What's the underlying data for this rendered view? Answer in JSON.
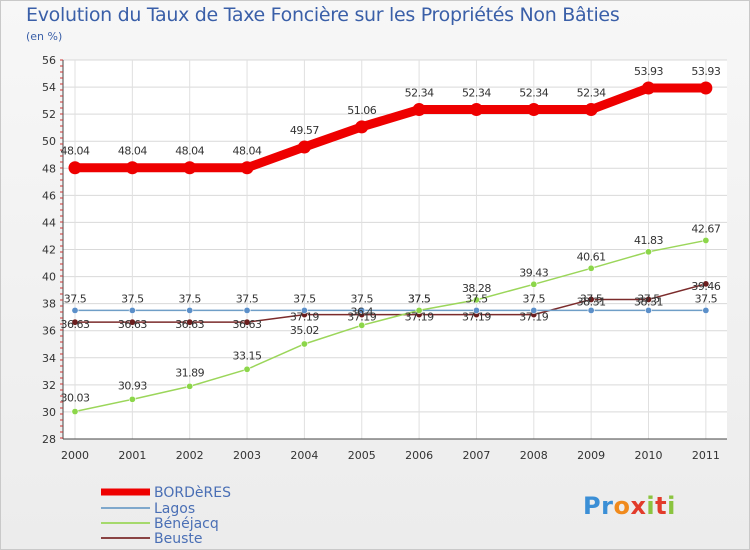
{
  "chart_data": {
    "type": "line",
    "title": "Evolution du Taux de Taxe Foncière sur les Propriétés Non Bâties",
    "subtitle": "(en %)",
    "x": [
      "2000",
      "2001",
      "2002",
      "2003",
      "2004",
      "2005",
      "2006",
      "2007",
      "2008",
      "2009",
      "2010",
      "2011"
    ],
    "ylim": [
      28,
      56
    ],
    "yticks": [
      28,
      30,
      32,
      34,
      36,
      38,
      40,
      42,
      44,
      46,
      48,
      50,
      52,
      54,
      56
    ],
    "grid": true,
    "legend_position": "bottom-left",
    "series": [
      {
        "name": "BORDèRES",
        "color": "#ee0000",
        "values": [
          48.04,
          48.04,
          48.04,
          48.04,
          49.57,
          51.06,
          52.34,
          52.34,
          52.34,
          52.34,
          53.93,
          53.93
        ],
        "labels": [
          "48.04",
          "48.04",
          "48.04",
          "48.04",
          "49.57",
          "51.06",
          "52.34",
          "52.34",
          "52.34",
          "52.34",
          "53.93",
          "53.93"
        ]
      },
      {
        "name": "Lagos",
        "color": "#6f9ec7",
        "values": [
          37.5,
          37.5,
          37.5,
          37.5,
          37.5,
          37.5,
          37.5,
          37.5,
          37.5,
          37.5,
          37.5,
          37.5
        ],
        "labels": [
          "37.5",
          "37.5",
          "37.5",
          "37.5",
          "37.5",
          "37.5",
          "37.5",
          "37.5",
          "37.5",
          "37.5",
          "37.5",
          "37.5"
        ]
      },
      {
        "name": "Bénéjacq",
        "color": "#9bd65a",
        "values": [
          30.03,
          30.93,
          31.89,
          33.15,
          35.02,
          36.4,
          37.5,
          38.28,
          39.43,
          40.61,
          41.83,
          42.67
        ],
        "labels": [
          "30.03",
          "30.93",
          "31.89",
          "33.15",
          "35.02",
          "36.4",
          "37.5",
          "38.28",
          "39.43",
          "40.61",
          "41.83",
          "42.67"
        ]
      },
      {
        "name": "Beuste",
        "color": "#7b2b2b",
        "values": [
          36.63,
          36.63,
          36.63,
          36.63,
          37.19,
          37.19,
          37.19,
          37.19,
          37.19,
          38.31,
          38.31,
          39.46
        ],
        "labels": [
          "36.63",
          "36.63",
          "36.63",
          "36.63",
          "37.19",
          "37.19",
          "37.19",
          "37.19",
          "37.19",
          "38.31",
          "38.31",
          "39.46"
        ]
      }
    ]
  },
  "brand": {
    "p1": "Pr",
    "o": "o",
    "x": "x",
    "i": "i",
    "t": "t",
    "i2": "i"
  }
}
